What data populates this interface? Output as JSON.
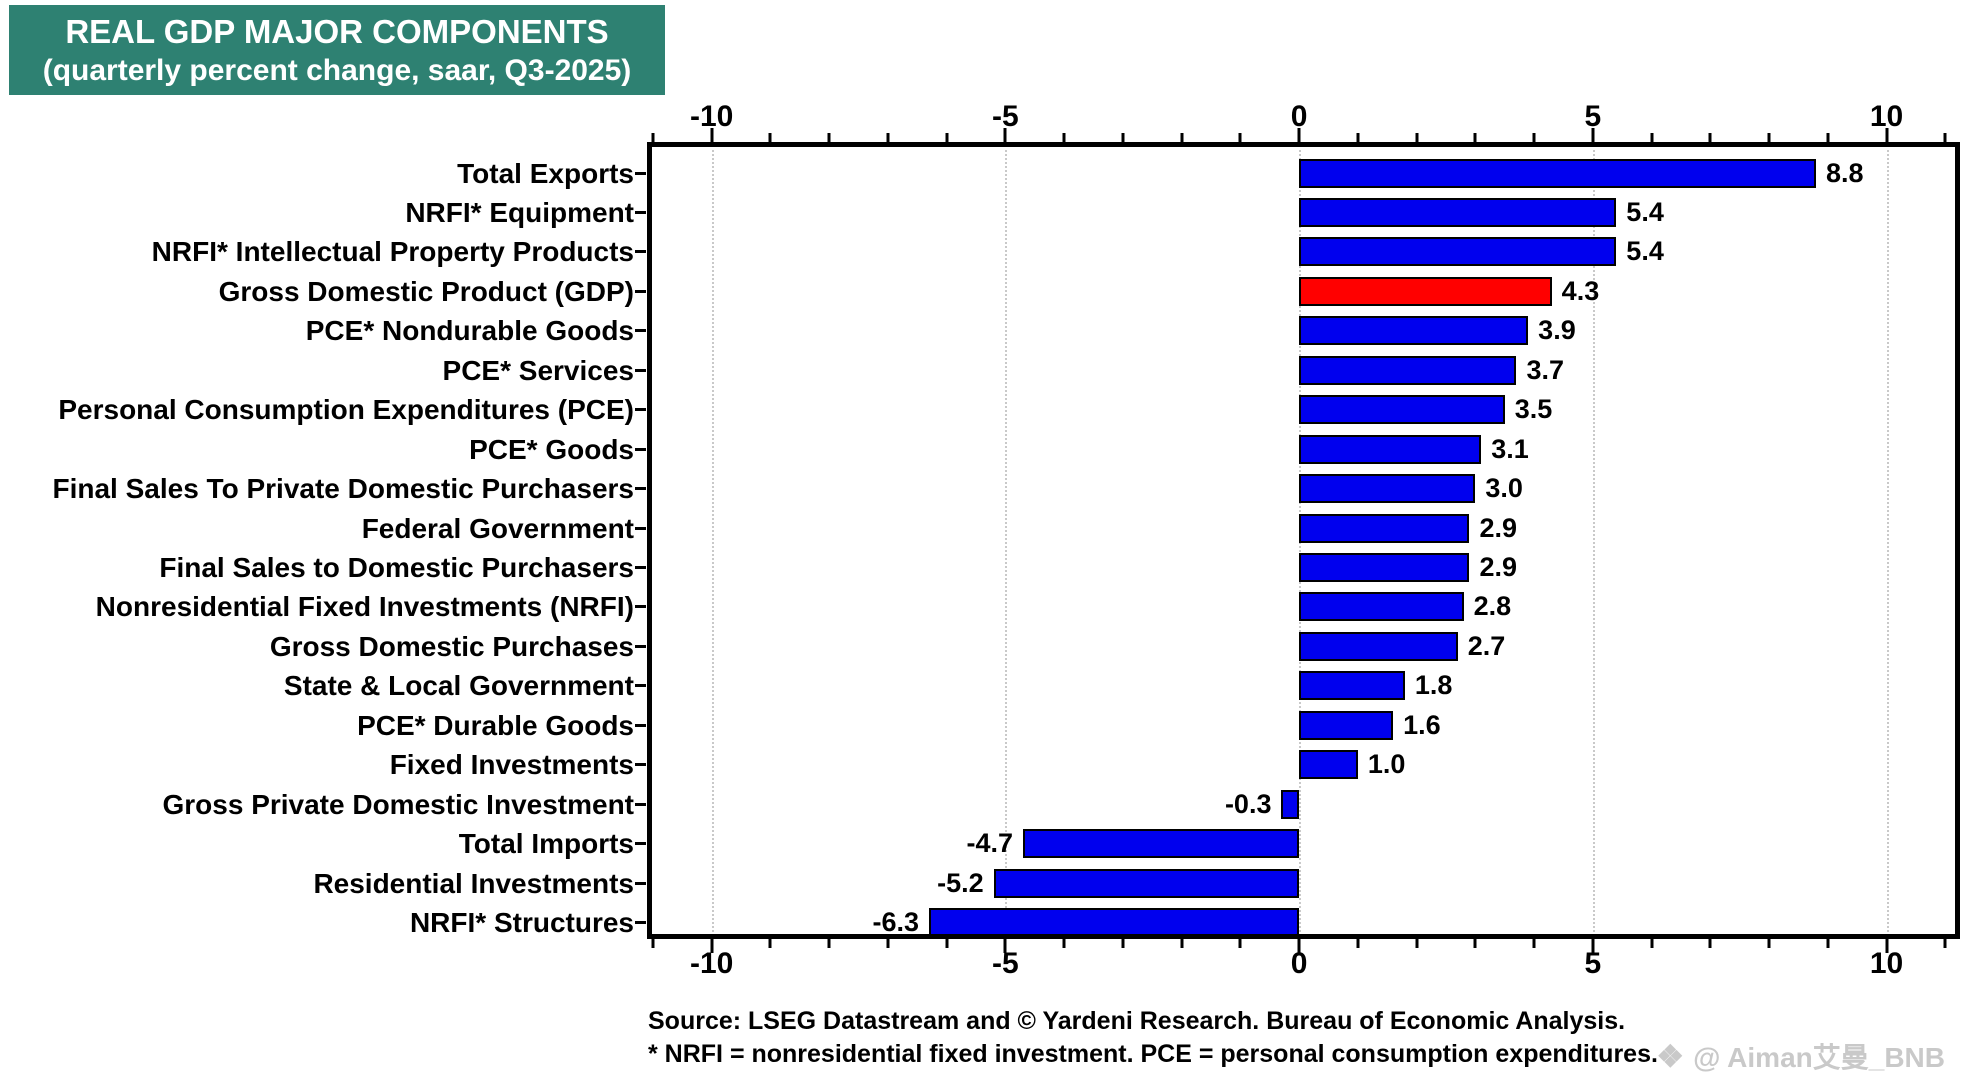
{
  "title": {
    "line1": "REAL GDP MAJOR COMPONENTS",
    "line2": "(quarterly percent change, saar, Q3-2025)"
  },
  "source": {
    "line1": "Source: LSEG Datastream and © Yardeni Research. Bureau of Economic Analysis.",
    "line2": "* NRFI = nonresidential fixed investment. PCE = personal consumption expenditures."
  },
  "watermark": {
    "icon": "binance-diamond-icon",
    "text": "@ Aiman艾曼_BNB"
  },
  "colors": {
    "bar_blue": "#0000ee",
    "bar_red_highlight": "#ff0000",
    "title_background": "#2e8172",
    "title_text": "#ffffff",
    "gridline": "#c9c9c9",
    "watermark_gray": "#c9c9c9"
  },
  "chart_data": {
    "type": "bar",
    "orientation": "horizontal",
    "title": "REAL GDP MAJOR COMPONENTS",
    "subtitle": "(quarterly percent change, saar, Q3-2025)",
    "xlabel": "quarterly percent change (saar)",
    "categories": [
      "Total Exports",
      "NRFI* Equipment",
      "NRFI* Intellectual Property Products",
      "Gross Domestic Product (GDP)",
      "PCE* Nondurable Goods",
      "PCE* Services",
      "Personal Consumption Expenditures (PCE)",
      "PCE* Goods",
      "Final Sales To Private Domestic Purchasers",
      "Federal Government",
      "Final Sales to Domestic Purchasers",
      "Nonresidential Fixed Investments (NRFI)",
      "Gross Domestic Purchases",
      "State & Local Government",
      "PCE* Durable Goods",
      "Fixed Investments",
      "Gross Private Domestic Investment",
      "Total Imports",
      "Residential Investments",
      "NRFI* Structures"
    ],
    "values": [
      8.8,
      5.4,
      5.4,
      4.3,
      3.9,
      3.7,
      3.5,
      3.1,
      3.0,
      2.9,
      2.9,
      2.8,
      2.7,
      1.8,
      1.6,
      1.0,
      -0.3,
      -4.7,
      -5.2,
      -6.3
    ],
    "highlight_index": 3,
    "highlight_category": "Gross Domestic Product (GDP)",
    "xlim": [
      -11.05,
      11.2
    ],
    "ticks": [
      -10,
      -5,
      0,
      5,
      10
    ],
    "tick_labels": [
      "-10",
      "-5",
      "0",
      "5",
      "10"
    ],
    "minor_tick_step": 1,
    "minor_tick_range": [
      -11,
      11
    ],
    "grid": "dotted vertical gridlines at major ticks",
    "legend": "none",
    "value_labels_decimals": 1
  }
}
